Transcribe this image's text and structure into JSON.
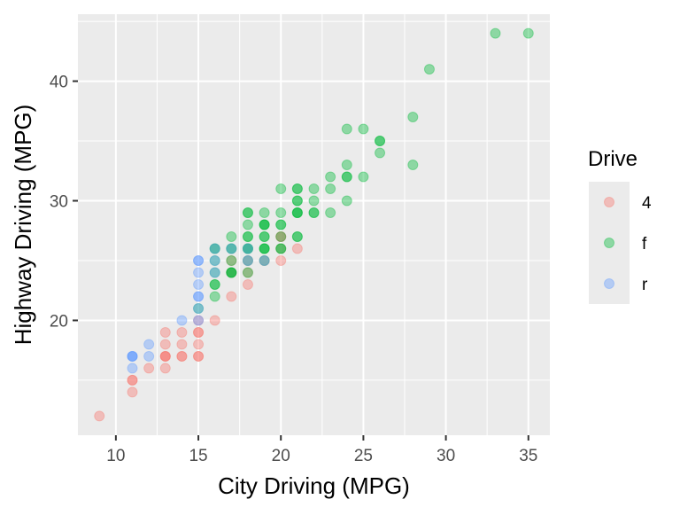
{
  "chart_data": {
    "type": "scatter",
    "title": "",
    "xlabel": "City Driving (MPG)",
    "ylabel": "Highway Driving (MPG)",
    "xlim": [
      7.7,
      36.3
    ],
    "ylim": [
      10.4,
      45.6
    ],
    "xticks": [
      10,
      15,
      20,
      25,
      30,
      35
    ],
    "yticks": [
      20,
      30,
      40
    ],
    "grid": true,
    "legend": {
      "title": "Drive",
      "position": "right"
    },
    "point_alpha": 0.4,
    "series": [
      {
        "name": "4",
        "color": "#F8766D",
        "points": [
          [
            9,
            12
          ],
          [
            11,
            14
          ],
          [
            11,
            15
          ],
          [
            11,
            15
          ],
          [
            12,
            16
          ],
          [
            13,
            16
          ],
          [
            13,
            17
          ],
          [
            13,
            17
          ],
          [
            13,
            17
          ],
          [
            13,
            18
          ],
          [
            13,
            19
          ],
          [
            14,
            17
          ],
          [
            14,
            17
          ],
          [
            14,
            18
          ],
          [
            14,
            19
          ],
          [
            15,
            17
          ],
          [
            15,
            17
          ],
          [
            15,
            18
          ],
          [
            15,
            19
          ],
          [
            15,
            19
          ],
          [
            15,
            20
          ],
          [
            16,
            20
          ],
          [
            17,
            22
          ],
          [
            17,
            24
          ],
          [
            17,
            25
          ],
          [
            18,
            23
          ],
          [
            18,
            24
          ],
          [
            18,
            25
          ],
          [
            19,
            25
          ],
          [
            20,
            25
          ],
          [
            20,
            26
          ],
          [
            20,
            27
          ],
          [
            20,
            27
          ],
          [
            21,
            26
          ]
        ]
      },
      {
        "name": "f",
        "color": "#00BA38",
        "points": [
          [
            15,
            21
          ],
          [
            16,
            22
          ],
          [
            16,
            23
          ],
          [
            16,
            23
          ],
          [
            16,
            24
          ],
          [
            16,
            25
          ],
          [
            16,
            26
          ],
          [
            16,
            26
          ],
          [
            17,
            24
          ],
          [
            17,
            24
          ],
          [
            17,
            24
          ],
          [
            17,
            25
          ],
          [
            17,
            26
          ],
          [
            17,
            26
          ],
          [
            17,
            27
          ],
          [
            18,
            24
          ],
          [
            18,
            25
          ],
          [
            18,
            26
          ],
          [
            18,
            26
          ],
          [
            18,
            26
          ],
          [
            18,
            27
          ],
          [
            18,
            27
          ],
          [
            18,
            28
          ],
          [
            18,
            29
          ],
          [
            18,
            29
          ],
          [
            19,
            25
          ],
          [
            19,
            26
          ],
          [
            19,
            26
          ],
          [
            19,
            26
          ],
          [
            19,
            27
          ],
          [
            19,
            27
          ],
          [
            19,
            28
          ],
          [
            19,
            28
          ],
          [
            19,
            28
          ],
          [
            19,
            29
          ],
          [
            20,
            26
          ],
          [
            20,
            26
          ],
          [
            20,
            27
          ],
          [
            20,
            28
          ],
          [
            20,
            28
          ],
          [
            20,
            29
          ],
          [
            20,
            31
          ],
          [
            21,
            27
          ],
          [
            21,
            27
          ],
          [
            21,
            29
          ],
          [
            21,
            29
          ],
          [
            21,
            29
          ],
          [
            21,
            30
          ],
          [
            21,
            30
          ],
          [
            21,
            31
          ],
          [
            21,
            31
          ],
          [
            22,
            29
          ],
          [
            22,
            29
          ],
          [
            22,
            30
          ],
          [
            22,
            31
          ],
          [
            23,
            29
          ],
          [
            23,
            31
          ],
          [
            23,
            32
          ],
          [
            24,
            30
          ],
          [
            24,
            32
          ],
          [
            24,
            32
          ],
          [
            24,
            33
          ],
          [
            24,
            36
          ],
          [
            25,
            32
          ],
          [
            25,
            36
          ],
          [
            26,
            34
          ],
          [
            26,
            35
          ],
          [
            26,
            35
          ],
          [
            28,
            33
          ],
          [
            28,
            37
          ],
          [
            29,
            41
          ],
          [
            33,
            44
          ],
          [
            35,
            44
          ]
        ]
      },
      {
        "name": "r",
        "color": "#619CFF",
        "points": [
          [
            11,
            16
          ],
          [
            11,
            17
          ],
          [
            11,
            17
          ],
          [
            11,
            17
          ],
          [
            12,
            17
          ],
          [
            12,
            18
          ],
          [
            14,
            20
          ],
          [
            15,
            20
          ],
          [
            15,
            21
          ],
          [
            15,
            22
          ],
          [
            15,
            22
          ],
          [
            15,
            23
          ],
          [
            15,
            24
          ],
          [
            15,
            25
          ],
          [
            15,
            25
          ],
          [
            16,
            24
          ],
          [
            16,
            25
          ],
          [
            16,
            26
          ],
          [
            17,
            26
          ],
          [
            18,
            25
          ],
          [
            18,
            26
          ],
          [
            19,
            25
          ]
        ]
      }
    ]
  }
}
